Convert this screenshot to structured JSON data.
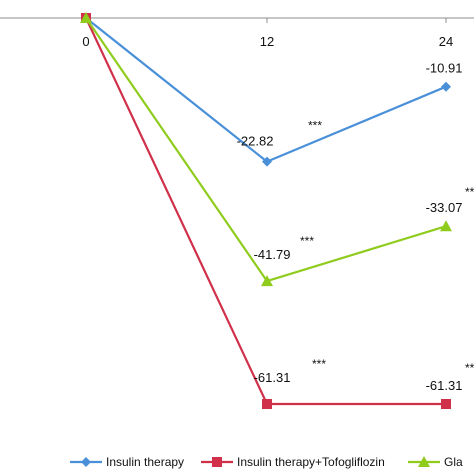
{
  "chart_data": {
    "type": "line",
    "x": [
      0,
      12,
      24
    ],
    "xtick_labels": [
      "0",
      "12",
      "24"
    ],
    "series": [
      {
        "name": "Insulin therapy",
        "color": "#4a90d9",
        "marker": "diamond",
        "values": [
          0,
          -22.82,
          -10.91
        ],
        "labels": [
          "",
          "-22.82",
          "-10.91"
        ],
        "significance": [
          "",
          "***",
          ""
        ]
      },
      {
        "name": "Insulin therapy+Tofogliflozin",
        "color": "#d0304a",
        "marker": "square",
        "values": [
          0,
          -61.31,
          -61.31
        ],
        "labels": [
          "",
          "-61.31",
          "-61.31"
        ],
        "significance": [
          "",
          "***",
          "***"
        ]
      },
      {
        "name": "Gla",
        "color": "#8fcc1e",
        "marker": "triangle",
        "values": [
          0,
          -41.79,
          -33.07
        ],
        "labels": [
          "",
          "-41.79",
          "-33.07"
        ],
        "significance": [
          "",
          "***",
          "***"
        ]
      }
    ],
    "ylim": [
      -70,
      0
    ],
    "grid": false,
    "legend_position": "bottom"
  }
}
